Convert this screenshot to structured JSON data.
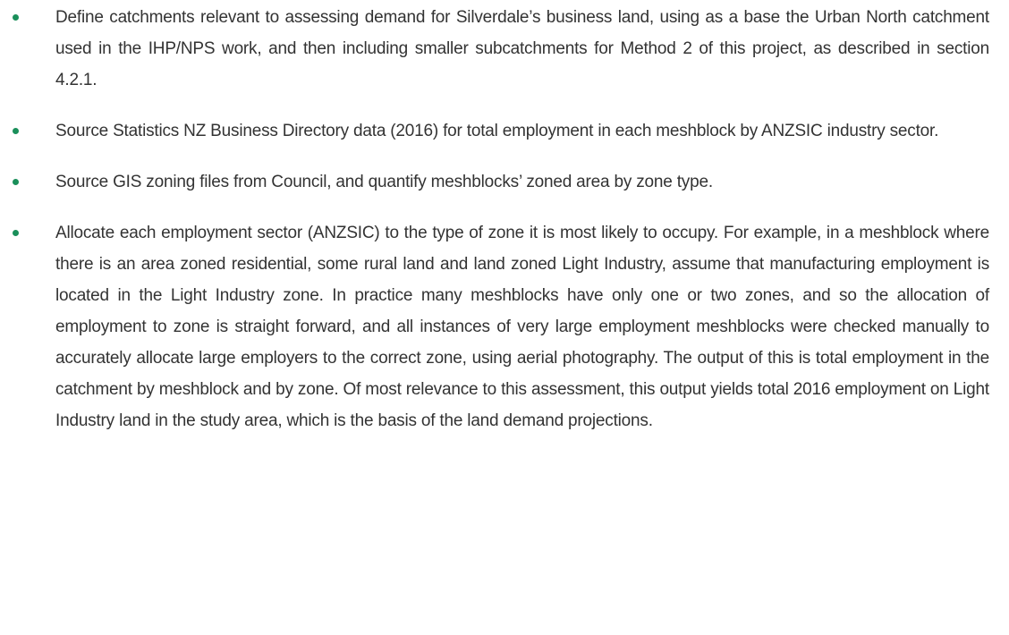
{
  "bullets": [
    "Define catchments relevant to assessing demand for Silverdale’s business land, using as a base the Urban North catchment used in the IHP/NPS work, and then including smaller subcatchments for Method 2 of this project, as described in section 4.2.1.",
    "Source Statistics NZ Business Directory data (2016) for total employment in each meshblock by ANZSIC industry sector.",
    "Source GIS zoning files from Council, and quantify meshblocks’ zoned area by zone type.",
    "Allocate each employment sector (ANZSIC) to the type of zone it is most likely to occupy. For example, in a meshblock where there is an area zoned residential, some rural land and land zoned Light Industry, assume that manufacturing employment is located in the Light Industry zone. In practice many meshblocks have only one or two zones, and so the allocation of employment to zone is straight forward, and all instances of very large employment meshblocks were checked manually to accurately allocate large employers to the correct zone, using aerial photography. The output of this is total employment in the catchment by meshblock and by zone. Of most relevance to this assessment, this output yields total 2016 employment on Light Industry land in the study area, which is the basis of the land demand projections."
  ]
}
